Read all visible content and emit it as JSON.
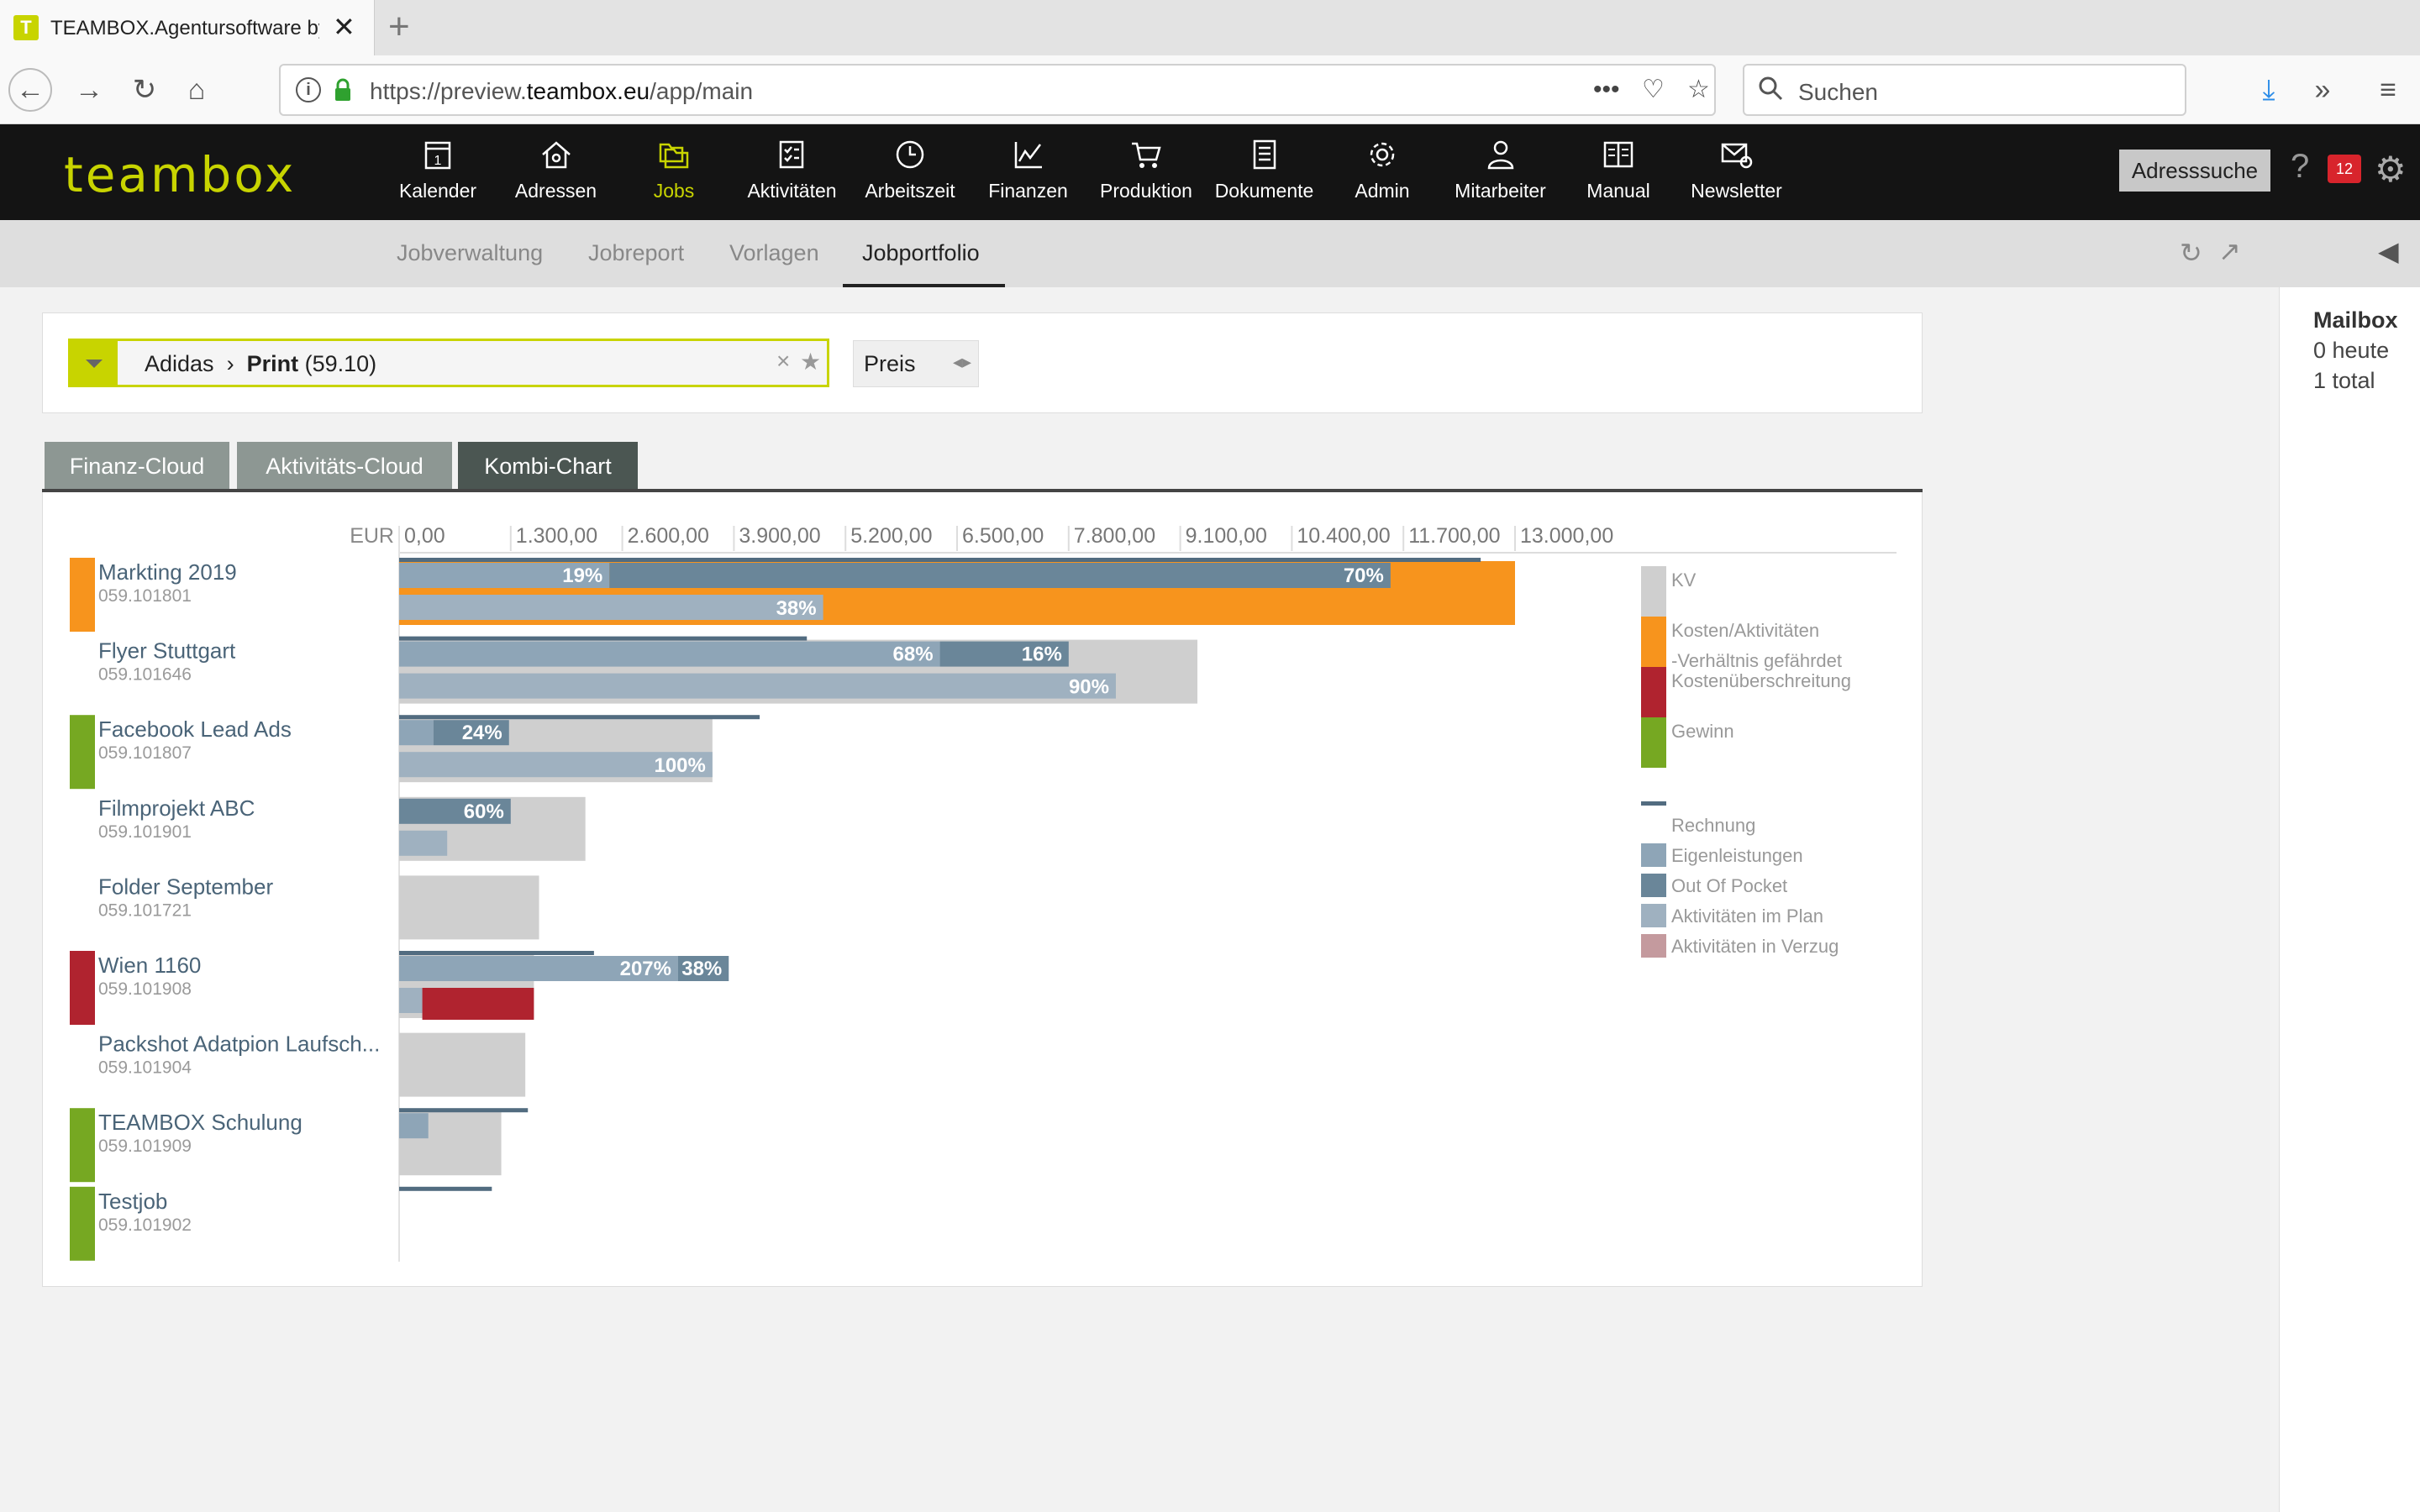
{
  "browser": {
    "tab_title": "TEAMBOX.Agentursoftware by",
    "tab_favicon": "T",
    "url_prefix": "https://preview.",
    "url_domain": "teambox.eu",
    "url_path": "/app/main",
    "search_placeholder": "Suchen"
  },
  "app": {
    "logo": "teambox",
    "nav": [
      {
        "label": "Kalender",
        "icon": "calendar-icon"
      },
      {
        "label": "Adressen",
        "icon": "house-icon"
      },
      {
        "label": "Jobs",
        "icon": "folders-icon",
        "active": true
      },
      {
        "label": "Aktivitäten",
        "icon": "checklist-icon"
      },
      {
        "label": "Arbeitszeit",
        "icon": "clock-icon"
      },
      {
        "label": "Finanzen",
        "icon": "chart-icon"
      },
      {
        "label": "Produktion",
        "icon": "cart-icon"
      },
      {
        "label": "Dokumente",
        "icon": "document-icon"
      },
      {
        "label": "Admin",
        "icon": "gear-icon"
      },
      {
        "label": "Mitarbeiter",
        "icon": "person-icon"
      },
      {
        "label": "Manual",
        "icon": "book-icon"
      },
      {
        "label": "Newsletter",
        "icon": "mail-icon"
      }
    ],
    "address_search": "Adresssuche",
    "help": "?",
    "message_count": "12"
  },
  "subnav": {
    "items": [
      "Jobverwaltung",
      "Jobreport",
      "Vorlagen",
      "Jobportfolio"
    ],
    "active": "Jobportfolio"
  },
  "mailbox": {
    "title": "Mailbox",
    "today": "0 heute",
    "total": "1 total"
  },
  "filter": {
    "client": "Adidas",
    "separator": "›",
    "job_type": "Print",
    "job_code": "(59.10)",
    "clear": "×",
    "star": "★",
    "sort_label": "Preis",
    "sort_arrows": "◂▸"
  },
  "views": {
    "tabs": [
      "Finanz-Cloud",
      "Aktivitäts-Cloud",
      "Kombi-Chart"
    ],
    "active": "Kombi-Chart"
  },
  "colors": {
    "kv": "#cfcfcf",
    "warning": "#f7941d",
    "overrun": "#b0232f",
    "profit": "#76a822",
    "invoice": "#526c80",
    "own_work": "#8ea5b7",
    "out_of_pocket": "#6a8699",
    "activities_plan": "#9fb1c0",
    "activities_delay": "#c49a9e",
    "text_job": "#4a6478",
    "text_code": "#9a9a9a"
  },
  "chart_data": {
    "type": "bar",
    "currency": "EUR",
    "xlim": [
      0,
      13000
    ],
    "tick_labels": [
      "0,00",
      "1.300,00",
      "2.600,00",
      "3.900,00",
      "5.200,00",
      "6.500,00",
      "7.800,00",
      "9.100,00",
      "10.400,00",
      "11.700,00",
      "13.000,00"
    ],
    "legend_placement": "right",
    "legend": [
      {
        "label": "KV",
        "color_key": "kv",
        "kind": "block"
      },
      {
        "label": "Kosten/Aktivitäten -Verhältnis gefährdet",
        "color_key": "warning",
        "kind": "block"
      },
      {
        "label": "Kostenüberschreitung",
        "color_key": "overrun",
        "kind": "block"
      },
      {
        "label": "Gewinn",
        "color_key": "profit",
        "kind": "block"
      },
      {
        "label": "Rechnung",
        "color_key": "invoice",
        "kind": "line"
      },
      {
        "label": "Eigenleistungen",
        "color_key": "own_work",
        "kind": "small"
      },
      {
        "label": "Out Of Pocket",
        "color_key": "out_of_pocket",
        "kind": "small"
      },
      {
        "label": "Aktivitäten im Plan",
        "color_key": "activities_plan",
        "kind": "small"
      },
      {
        "label": "Aktivitäten in Verzug",
        "color_key": "activities_delay",
        "kind": "small"
      }
    ],
    "jobs": [
      {
        "name": "Markting 2019",
        "code": "059.101801",
        "status": "warning",
        "kv": 13000,
        "invoice": 12600,
        "own": 2450,
        "oop": 9100,
        "own_pct": "19%",
        "oop_pct": "70%",
        "activities": 4940,
        "activities_pct": "38%",
        "overlay": "warning"
      },
      {
        "name": "Flyer Stuttgart",
        "code": "059.101646",
        "status": "",
        "kv": 9300,
        "invoice": 4750,
        "own": 6300,
        "oop": 1500,
        "own_pct": "68%",
        "oop_pct": "16%",
        "activities": 8350,
        "activities_pct": "90%"
      },
      {
        "name": "Facebook Lead Ads",
        "code": "059.101807",
        "status": "profit",
        "kv": 3650,
        "invoice": 4200,
        "own": 400,
        "oop": 880,
        "own_pct": "",
        "oop_pct": "24%",
        "activities": 3650,
        "activities_pct": "100%"
      },
      {
        "name": "Filmprojekt ABC",
        "code": "059.101901",
        "status": "",
        "kv": 2170,
        "invoice": 0,
        "own": 0,
        "oop": 1300,
        "own_pct": "",
        "oop_pct": "60%",
        "activities": 560,
        "activities_pct": ""
      },
      {
        "name": "Folder September",
        "code": "059.101721",
        "status": "",
        "kv": 1630,
        "invoice": 0,
        "own": 0,
        "oop": 0,
        "activities": 0
      },
      {
        "name": "Wien 1160",
        "code": "059.101908",
        "status": "overrun",
        "kv": 1570,
        "invoice": 2270,
        "own": 3250,
        "oop": 590,
        "own_pct": "207%",
        "oop_pct": "38%",
        "activities": 270,
        "activities_pct": "",
        "overrun_to": 1570
      },
      {
        "name": "Packshot Adatpion Laufsch...",
        "code": "059.101904",
        "status": "",
        "kv": 1470,
        "invoice": 0,
        "own": 0,
        "oop": 0,
        "activities": 0
      },
      {
        "name": "TEAMBOX Schulung",
        "code": "059.101909",
        "status": "profit",
        "kv": 1190,
        "invoice": 1500,
        "own": 340,
        "oop": 0,
        "activities": 0
      },
      {
        "name": "Testjob",
        "code": "059.101902",
        "status": "profit",
        "kv": 0,
        "invoice": 1080,
        "own": 0,
        "oop": 0,
        "activities": 0
      }
    ]
  }
}
